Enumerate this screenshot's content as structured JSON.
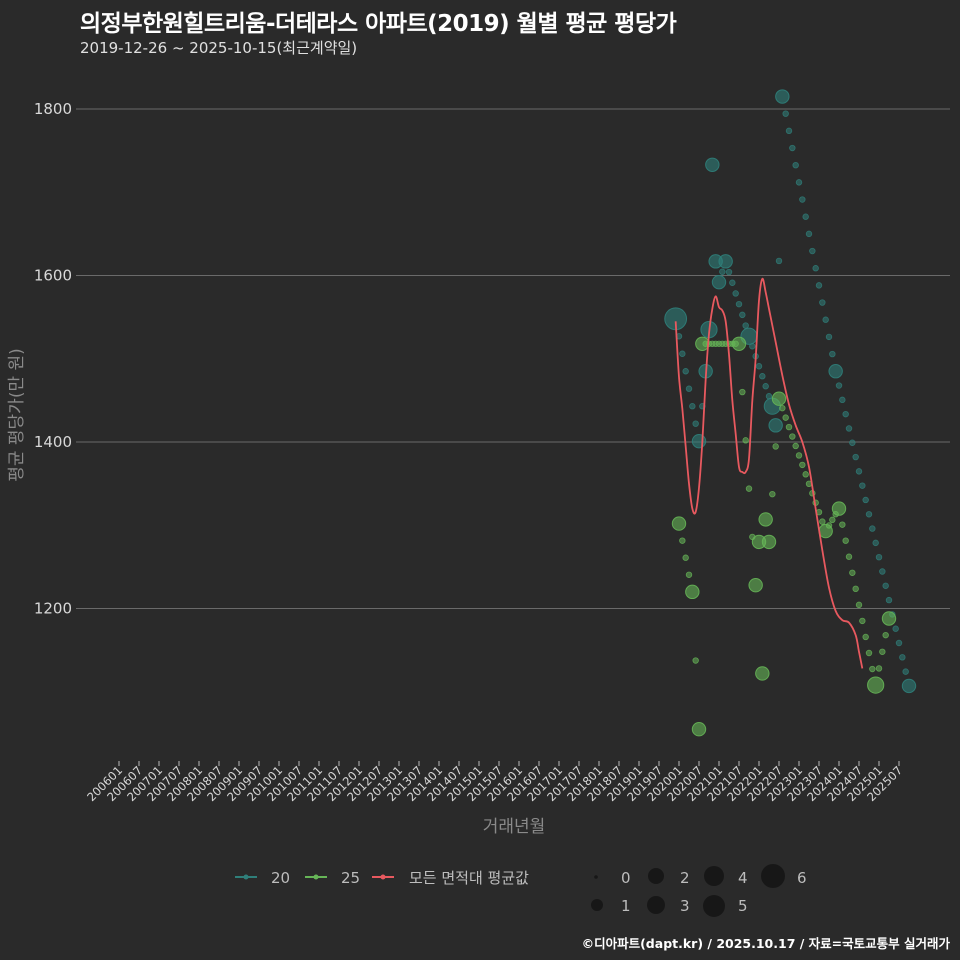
{
  "header": {
    "title": "의정부한원힐트리움-더테라스 아파트(2019) 월별 평균 평당가",
    "subtitle": "2019-12-26 ~ 2025-10-15(최근계약일)"
  },
  "footer": {
    "credit": "©디아파트(dapt.kr) / 2025.10.17 / 자료=국토교통부 실거래가"
  },
  "colors": {
    "background": "#2a2a2a",
    "grid": "#6a6a6a",
    "series_20": "#2f7f7a",
    "series_25": "#66b557",
    "series_avg": "#e8595f"
  },
  "legend": {
    "series": [
      {
        "label": "20",
        "color": "#2f7f7a"
      },
      {
        "label": "25",
        "color": "#66b557"
      },
      {
        "label": "모든 면적대 평균값",
        "color": "#e8595f"
      }
    ],
    "sizes": [
      "0",
      "1",
      "2",
      "3",
      "4",
      "5",
      "6"
    ]
  },
  "chart_data": {
    "type": "scatter",
    "title": "의정부한원힐트리움-더테라스 아파트(2019) 월별 평균 평당가",
    "subtitle": "2019-12-26 ~ 2025-10-15(최근계약일)",
    "xlabel": "거래년월",
    "ylabel": "평균 평당가(만 원)",
    "ylim": [
      1030,
      1830
    ],
    "yticks": [
      1200,
      1400,
      1600,
      1800
    ],
    "grid": true,
    "legend_position": "bottom",
    "x_tick_labels": [
      "200601",
      "200607",
      "200701",
      "200707",
      "200801",
      "200807",
      "200901",
      "200907",
      "201001",
      "201007",
      "201101",
      "201107",
      "201201",
      "201207",
      "201301",
      "201307",
      "201401",
      "201407",
      "201501",
      "201507",
      "201601",
      "201607",
      "201701",
      "201707",
      "201801",
      "201807",
      "201901",
      "201907",
      "202001",
      "202007",
      "202101",
      "202107",
      "202201",
      "202207",
      "202301",
      "202307",
      "202401",
      "202407",
      "202501",
      "202507"
    ],
    "series": [
      {
        "name": "20",
        "points": [
          {
            "x": "201912",
            "y": 1548,
            "size": 5
          },
          {
            "x": "202007",
            "y": 1401,
            "size": 2
          },
          {
            "x": "202009",
            "y": 1485,
            "size": 2
          },
          {
            "x": "202010",
            "y": 1535,
            "size": 3
          },
          {
            "x": "202011",
            "y": 1733,
            "size": 2
          },
          {
            "x": "202012",
            "y": 1617,
            "size": 2
          },
          {
            "x": "202101",
            "y": 1592,
            "size": 2
          },
          {
            "x": "202103",
            "y": 1617,
            "size": 2
          },
          {
            "x": "202110",
            "y": 1527,
            "size": 3
          },
          {
            "x": "202205",
            "y": 1443,
            "size": 3
          },
          {
            "x": "202206",
            "y": 1420,
            "size": 2
          },
          {
            "x": "202208",
            "y": 1815,
            "size": 2
          },
          {
            "x": "202312",
            "y": 1485,
            "size": 2
          },
          {
            "x": "202510",
            "y": 1107,
            "size": 2
          }
        ]
      },
      {
        "name": "25",
        "points": [
          {
            "x": "202001",
            "y": 1302,
            "size": 2
          },
          {
            "x": "202005",
            "y": 1220,
            "size": 2
          },
          {
            "x": "202007",
            "y": 1055,
            "size": 2
          },
          {
            "x": "202008",
            "y": 1518,
            "size": 2
          },
          {
            "x": "202107",
            "y": 1518,
            "size": 2
          },
          {
            "x": "202112",
            "y": 1228,
            "size": 2
          },
          {
            "x": "202201",
            "y": 1280,
            "size": 2
          },
          {
            "x": "202202",
            "y": 1122,
            "size": 2
          },
          {
            "x": "202203",
            "y": 1307,
            "size": 2
          },
          {
            "x": "202204",
            "y": 1280,
            "size": 2
          },
          {
            "x": "202207",
            "y": 1452,
            "size": 2
          },
          {
            "x": "202309",
            "y": 1293,
            "size": 2
          },
          {
            "x": "202401",
            "y": 1320,
            "size": 2
          },
          {
            "x": "202412",
            "y": 1108,
            "size": 3
          },
          {
            "x": "202504",
            "y": 1188,
            "size": 2
          }
        ]
      },
      {
        "name": "모든 면적대 평균값",
        "type": "line",
        "points": [
          {
            "x": "201912",
            "y": 1545
          },
          {
            "x": "202001",
            "y": 1478
          },
          {
            "x": "202002",
            "y": 1440
          },
          {
            "x": "202003",
            "y": 1395
          },
          {
            "x": "202004",
            "y": 1350
          },
          {
            "x": "202005",
            "y": 1320
          },
          {
            "x": "202006",
            "y": 1316
          },
          {
            "x": "202007",
            "y": 1345
          },
          {
            "x": "202008",
            "y": 1400
          },
          {
            "x": "202009",
            "y": 1475
          },
          {
            "x": "202010",
            "y": 1530
          },
          {
            "x": "202011",
            "y": 1560
          },
          {
            "x": "202012",
            "y": 1575
          },
          {
            "x": "202101",
            "y": 1562
          },
          {
            "x": "202102",
            "y": 1558
          },
          {
            "x": "202103",
            "y": 1545
          },
          {
            "x": "202104",
            "y": 1505
          },
          {
            "x": "202105",
            "y": 1450
          },
          {
            "x": "202106",
            "y": 1410
          },
          {
            "x": "202107",
            "y": 1370
          },
          {
            "x": "202108",
            "y": 1364
          },
          {
            "x": "202109",
            "y": 1364
          },
          {
            "x": "202110",
            "y": 1380
          },
          {
            "x": "202111",
            "y": 1450
          },
          {
            "x": "202112",
            "y": 1500
          },
          {
            "x": "202201",
            "y": 1570
          },
          {
            "x": "202202",
            "y": 1596
          },
          {
            "x": "202203",
            "y": 1580
          },
          {
            "x": "202204",
            "y": 1560
          },
          {
            "x": "202206",
            "y": 1520
          },
          {
            "x": "202208",
            "y": 1480
          },
          {
            "x": "202210",
            "y": 1445
          },
          {
            "x": "202212",
            "y": 1420
          },
          {
            "x": "202302",
            "y": 1400
          },
          {
            "x": "202304",
            "y": 1370
          },
          {
            "x": "202306",
            "y": 1320
          },
          {
            "x": "202308",
            "y": 1270
          },
          {
            "x": "202310",
            "y": 1225
          },
          {
            "x": "202312",
            "y": 1197
          },
          {
            "x": "202402",
            "y": 1186
          },
          {
            "x": "202404",
            "y": 1183
          },
          {
            "x": "202406",
            "y": 1168
          },
          {
            "x": "202407",
            "y": 1148
          },
          {
            "x": "202408",
            "y": 1128
          }
        ]
      }
    ]
  },
  "axes": {
    "xlabel": "거래년월",
    "ylabel": "평균 평당가(만 원)",
    "yticks": [
      "1200",
      "1400",
      "1600",
      "1800"
    ]
  }
}
